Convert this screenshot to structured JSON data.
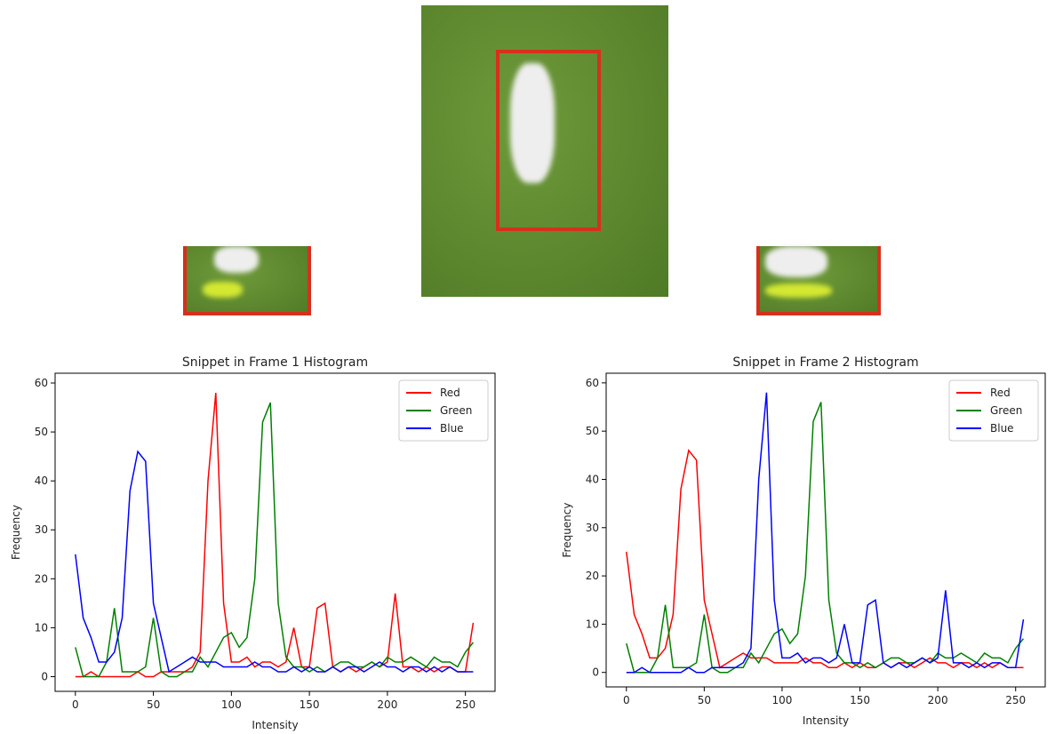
{
  "chart_data": [
    {
      "type": "line",
      "title": "Snippet in Frame 1 Histogram",
      "x_label": "Intensity",
      "y_label": "Frequency",
      "x": [
        0,
        5,
        10,
        15,
        20,
        25,
        30,
        35,
        40,
        45,
        50,
        55,
        60,
        65,
        70,
        75,
        80,
        85,
        90,
        95,
        100,
        105,
        110,
        115,
        120,
        125,
        130,
        135,
        140,
        145,
        150,
        155,
        160,
        165,
        170,
        175,
        180,
        185,
        190,
        195,
        200,
        205,
        210,
        215,
        220,
        225,
        230,
        235,
        240,
        245,
        250,
        255
      ],
      "series": [
        {
          "name": "Red",
          "color": "#ff0000",
          "values": [
            0,
            0,
            1,
            0,
            0,
            0,
            0,
            0,
            1,
            0,
            0,
            1,
            1,
            1,
            1,
            2,
            5,
            40,
            58,
            15,
            3,
            3,
            4,
            2,
            3,
            3,
            2,
            3,
            10,
            2,
            2,
            14,
            15,
            2,
            1,
            2,
            1,
            2,
            3,
            2,
            3,
            17,
            2,
            2,
            1,
            2,
            1,
            2,
            2,
            1,
            1,
            11
          ]
        },
        {
          "name": "Green",
          "color": "#008000",
          "values": [
            6,
            0,
            0,
            0,
            3,
            14,
            1,
            1,
            1,
            2,
            12,
            1,
            0,
            0,
            1,
            1,
            4,
            2,
            5,
            8,
            9,
            6,
            8,
            20,
            52,
            56,
            15,
            4,
            2,
            2,
            1,
            2,
            1,
            2,
            3,
            3,
            2,
            2,
            3,
            2,
            4,
            3,
            3,
            4,
            3,
            2,
            4,
            3,
            3,
            2,
            5,
            7
          ]
        },
        {
          "name": "Blue",
          "color": "#0000ff",
          "values": [
            25,
            12,
            8,
            3,
            3,
            5,
            12,
            38,
            46,
            44,
            15,
            8,
            1,
            2,
            3,
            4,
            3,
            3,
            3,
            2,
            2,
            2,
            2,
            3,
            2,
            2,
            1,
            1,
            2,
            1,
            2,
            1,
            1,
            2,
            1,
            2,
            2,
            1,
            2,
            3,
            2,
            2,
            1,
            2,
            2,
            1,
            2,
            1,
            2,
            1,
            1,
            1
          ]
        }
      ],
      "xlim": [
        -13,
        269
      ],
      "ylim": [
        -3,
        62
      ],
      "xticks": [
        0,
        50,
        100,
        150,
        200,
        250
      ],
      "yticks": [
        0,
        10,
        20,
        30,
        40,
        50,
        60
      ],
      "legend": "upper right"
    },
    {
      "type": "line",
      "title": "Snippet in Frame 2 Histogram",
      "x_label": "Intensity",
      "y_label": "Frequency",
      "x": [
        0,
        5,
        10,
        15,
        20,
        25,
        30,
        35,
        40,
        45,
        50,
        55,
        60,
        65,
        70,
        75,
        80,
        85,
        90,
        95,
        100,
        105,
        110,
        115,
        120,
        125,
        130,
        135,
        140,
        145,
        150,
        155,
        160,
        165,
        170,
        175,
        180,
        185,
        190,
        195,
        200,
        205,
        210,
        215,
        220,
        225,
        230,
        235,
        240,
        245,
        250,
        255
      ],
      "series": [
        {
          "name": "Red",
          "color": "#ff0000",
          "values": [
            25,
            12,
            8,
            3,
            3,
            5,
            12,
            38,
            46,
            44,
            15,
            8,
            1,
            2,
            3,
            4,
            3,
            3,
            3,
            2,
            2,
            2,
            2,
            3,
            2,
            2,
            1,
            1,
            2,
            1,
            2,
            1,
            1,
            2,
            1,
            2,
            2,
            1,
            2,
            3,
            2,
            2,
            1,
            2,
            2,
            1,
            2,
            1,
            2,
            1,
            1,
            1
          ]
        },
        {
          "name": "Green",
          "color": "#008000",
          "values": [
            6,
            0,
            0,
            0,
            3,
            14,
            1,
            1,
            1,
            2,
            12,
            1,
            0,
            0,
            1,
            1,
            4,
            2,
            5,
            8,
            9,
            6,
            8,
            20,
            52,
            56,
            15,
            4,
            2,
            2,
            1,
            2,
            1,
            2,
            3,
            3,
            2,
            2,
            3,
            2,
            4,
            3,
            3,
            4,
            3,
            2,
            4,
            3,
            3,
            2,
            5,
            7
          ]
        },
        {
          "name": "Blue",
          "color": "#0000ff",
          "values": [
            0,
            0,
            1,
            0,
            0,
            0,
            0,
            0,
            1,
            0,
            0,
            1,
            1,
            1,
            1,
            2,
            5,
            40,
            58,
            15,
            3,
            3,
            4,
            2,
            3,
            3,
            2,
            3,
            10,
            2,
            2,
            14,
            15,
            2,
            1,
            2,
            1,
            2,
            3,
            2,
            3,
            17,
            2,
            2,
            1,
            2,
            1,
            2,
            2,
            1,
            1,
            11
          ]
        }
      ],
      "xlim": [
        -13,
        269
      ],
      "ylim": [
        -3,
        62
      ],
      "xticks": [
        0,
        50,
        100,
        150,
        200,
        250
      ],
      "yticks": [
        0,
        10,
        20,
        30,
        40,
        50,
        60
      ],
      "legend": "upper right"
    }
  ]
}
